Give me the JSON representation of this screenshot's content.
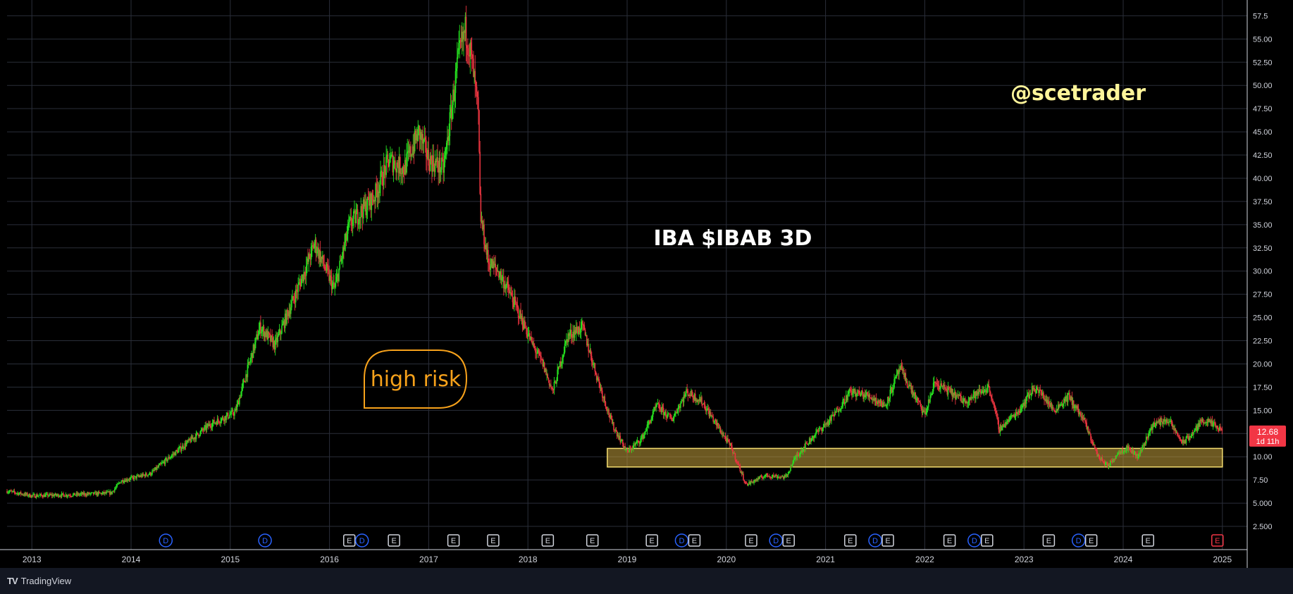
{
  "chart_data": {
    "type": "candlestick",
    "title": "IBA $IBAB 3D",
    "watermark": "@scetrader",
    "annotation": "high risk",
    "x_ticks": [
      "2013",
      "2014",
      "2015",
      "2016",
      "2017",
      "2018",
      "2019",
      "2020",
      "2021",
      "2022",
      "2023",
      "2024",
      "2025"
    ],
    "y_ticks": [
      "2.500",
      "5.000",
      "7.50",
      "10.00",
      "12.50",
      "15.00",
      "17.50",
      "20.00",
      "22.50",
      "25.00",
      "27.50",
      "30.00",
      "32.50",
      "35.00",
      "37.50",
      "40.00",
      "42.50",
      "45.00",
      "47.50",
      "50.00",
      "52.50",
      "55.00",
      "57.5"
    ],
    "ylim": [
      0,
      59.2
    ],
    "xlim": [
      2012.75,
      2025.25
    ],
    "last_price": {
      "value": 12.68,
      "label": "12.68",
      "countdown": "1d 11h"
    },
    "support_zone": {
      "x_start": 2018.8,
      "x_end": 2025.0,
      "y_low": 8.9,
      "y_high": 10.9
    },
    "anchors": [
      [
        2012.75,
        6.3
      ],
      [
        2013.0,
        5.8
      ],
      [
        2013.4,
        5.9
      ],
      [
        2013.8,
        6.1
      ],
      [
        2013.9,
        7.4
      ],
      [
        2014.2,
        8.2
      ],
      [
        2014.35,
        9.6
      ],
      [
        2014.6,
        11.8
      ],
      [
        2014.8,
        13.5
      ],
      [
        2015.05,
        14.8
      ],
      [
        2015.15,
        18.5
      ],
      [
        2015.3,
        24.0
      ],
      [
        2015.45,
        22.0
      ],
      [
        2015.6,
        26.0
      ],
      [
        2015.75,
        30.0
      ],
      [
        2015.85,
        33.0
      ],
      [
        2016.05,
        28.0
      ],
      [
        2016.2,
        35.0
      ],
      [
        2016.45,
        38.0
      ],
      [
        2016.6,
        42.0
      ],
      [
        2016.75,
        41.0
      ],
      [
        2016.9,
        45.0
      ],
      [
        2017.0,
        42.0
      ],
      [
        2017.15,
        41.0
      ],
      [
        2017.2,
        45.0
      ],
      [
        2017.3,
        53.0
      ],
      [
        2017.37,
        56.0
      ],
      [
        2017.43,
        53.0
      ],
      [
        2017.5,
        47.0
      ],
      [
        2017.52,
        36.0
      ],
      [
        2017.6,
        31.0
      ],
      [
        2017.7,
        30.0
      ],
      [
        2017.8,
        28.0
      ],
      [
        2017.95,
        24.5
      ],
      [
        2018.05,
        22.0
      ],
      [
        2018.15,
        20.0
      ],
      [
        2018.25,
        17.0
      ],
      [
        2018.4,
        23.0
      ],
      [
        2018.55,
        24.0
      ],
      [
        2018.7,
        18.5
      ],
      [
        2018.85,
        13.5
      ],
      [
        2019.0,
        10.5
      ],
      [
        2019.15,
        12.0
      ],
      [
        2019.3,
        15.5
      ],
      [
        2019.45,
        14.0
      ],
      [
        2019.6,
        17.0
      ],
      [
        2019.75,
        16.0
      ],
      [
        2019.9,
        13.5
      ],
      [
        2020.05,
        11.0
      ],
      [
        2020.2,
        7.0
      ],
      [
        2020.4,
        8.0
      ],
      [
        2020.6,
        7.8
      ],
      [
        2020.7,
        10.0
      ],
      [
        2020.9,
        12.5
      ],
      [
        2021.05,
        14.0
      ],
      [
        2021.25,
        17.0
      ],
      [
        2021.45,
        16.5
      ],
      [
        2021.6,
        15.5
      ],
      [
        2021.75,
        19.5
      ],
      [
        2021.9,
        16.5
      ],
      [
        2022.0,
        14.5
      ],
      [
        2022.1,
        18.0
      ],
      [
        2022.25,
        17.0
      ],
      [
        2022.4,
        16.0
      ],
      [
        2022.65,
        17.5
      ],
      [
        2022.75,
        13.0
      ],
      [
        2022.95,
        15.0
      ],
      [
        2023.1,
        17.5
      ],
      [
        2023.2,
        16.5
      ],
      [
        2023.3,
        15.0
      ],
      [
        2023.45,
        16.5
      ],
      [
        2023.6,
        14.0
      ],
      [
        2023.75,
        10.0
      ],
      [
        2023.85,
        9.0
      ],
      [
        2023.95,
        10.5
      ],
      [
        2024.05,
        11.0
      ],
      [
        2024.15,
        10.0
      ],
      [
        2024.3,
        13.5
      ],
      [
        2024.45,
        14.0
      ],
      [
        2024.6,
        11.5
      ],
      [
        2024.7,
        12.5
      ],
      [
        2024.8,
        14.0
      ],
      [
        2024.9,
        13.5
      ],
      [
        2025.0,
        12.68
      ]
    ],
    "events": [
      {
        "x": 2014.35,
        "labels": [
          "D"
        ]
      },
      {
        "x": 2015.35,
        "labels": [
          "D"
        ]
      },
      {
        "x": 2016.2,
        "labels": [
          "E",
          "D"
        ]
      },
      {
        "x": 2016.65,
        "labels": [
          "E"
        ]
      },
      {
        "x": 2017.25,
        "labels": [
          "E"
        ]
      },
      {
        "x": 2017.65,
        "labels": [
          "E"
        ]
      },
      {
        "x": 2018.2,
        "labels": [
          "E"
        ]
      },
      {
        "x": 2018.65,
        "labels": [
          "E"
        ]
      },
      {
        "x": 2019.25,
        "labels": [
          "E"
        ]
      },
      {
        "x": 2019.55,
        "labels": [
          "D",
          "E"
        ]
      },
      {
        "x": 2020.25,
        "labels": [
          "E"
        ]
      },
      {
        "x": 2020.5,
        "labels": [
          "D",
          "E"
        ]
      },
      {
        "x": 2021.25,
        "labels": [
          "E"
        ]
      },
      {
        "x": 2021.5,
        "labels": [
          "D",
          "E"
        ]
      },
      {
        "x": 2022.25,
        "labels": [
          "E"
        ]
      },
      {
        "x": 2022.5,
        "labels": [
          "D",
          "E"
        ]
      },
      {
        "x": 2023.25,
        "labels": [
          "E"
        ]
      },
      {
        "x": 2023.55,
        "labels": [
          "D",
          "E"
        ]
      },
      {
        "x": 2024.25,
        "labels": [
          "E"
        ]
      },
      {
        "x": 2024.95,
        "labels": [
          "E"
        ]
      }
    ],
    "colors": {
      "up": "#26e01f",
      "down": "#e8343f",
      "grid": "#2a2e39",
      "axis_text": "#d1d4dc",
      "title": "#ffffff",
      "watermark": "#fff59a",
      "annotation": "#f7a21b",
      "zone_fill": "rgba(196,160,60,0.55)",
      "zone_stroke": "#f5dd70",
      "price_badge": "#f23645",
      "event_d": "#2962ff",
      "event_e": "#d1d4dc",
      "event_last": "#f23645"
    }
  },
  "footer": {
    "brand": "TradingView",
    "logo": "TV"
  }
}
